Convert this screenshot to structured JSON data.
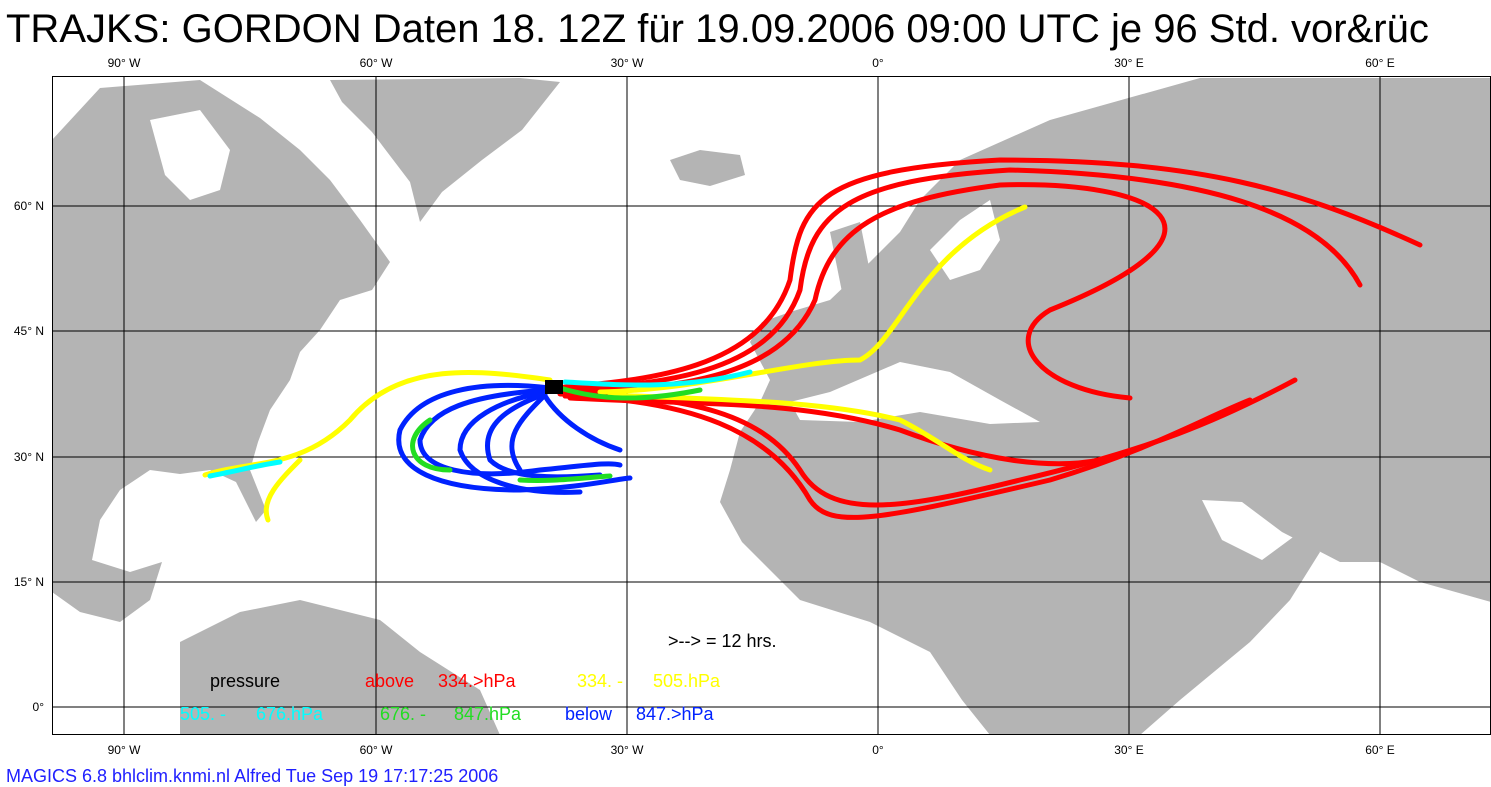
{
  "title": "TRAJKS: GORDON Daten 18. 12Z für 19.09.2006 09:00 UTC je 96 Std. vor&rüc",
  "lon_labels": [
    "90° W",
    "60° W",
    "30° W",
    "0°",
    "30° E",
    "60° E"
  ],
  "lat_labels": [
    "60° N",
    "45° N",
    "30° N",
    "15° N",
    "0°"
  ],
  "arrow_note": ">--> = 12 hrs.",
  "legend": {
    "row1": [
      "pressure",
      "above",
      "334.>hPa",
      "334. -",
      "505.hPa"
    ],
    "row2": [
      "505. -",
      "676.hPa",
      "676. -",
      "847.hPa",
      "below",
      "847.>hPa"
    ]
  },
  "footer": "MAGICS 6.8 bhlclim.knmi.nl Alfred Tue Sep 19 17:17:25 2006"
}
